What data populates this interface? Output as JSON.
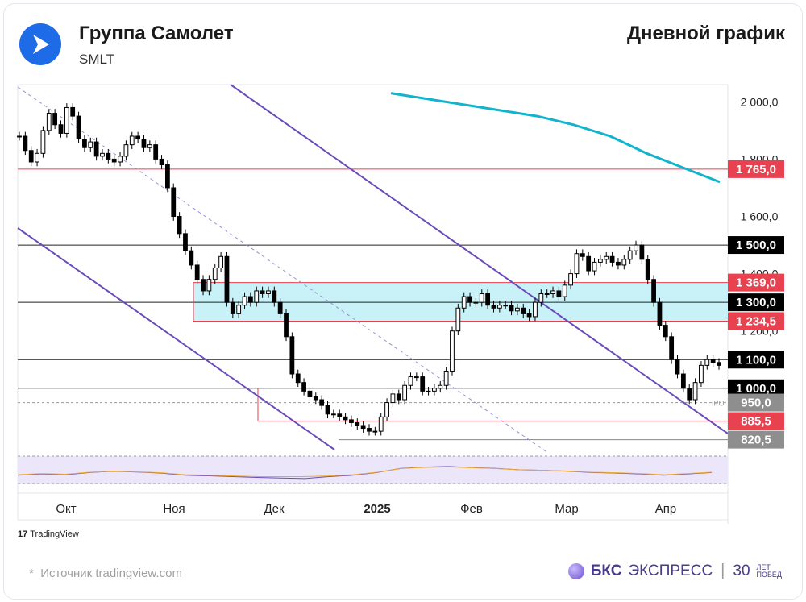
{
  "header": {
    "company": "Группа Самолет",
    "ticker": "SMLT",
    "chart_type_label": "Дневной график"
  },
  "footer": {
    "source": "Источник tradingview.com",
    "tradingview": "TradingView",
    "brand_bold": "БКС",
    "brand_rest": "ЭКСПРЕСС",
    "anniv_num": "30",
    "anniv_top": "ЛЕТ",
    "anniv_bottom": "ПОБЕД"
  },
  "colors": {
    "accent": "#1e6be8",
    "bull": "#ffffff",
    "bear": "#000000",
    "channel": "#6a4cb8",
    "ma": "#12b4cc",
    "zone": "#c9f1f8",
    "resistance_red": "#e8414f",
    "grey_label": "#8e8e8e"
  },
  "chart_data": {
    "type": "candlestick",
    "x_labels": [
      "Окт",
      "Ноя",
      "Дек",
      "2025",
      "Фев",
      "Мар",
      "Апр"
    ],
    "y_ticks": [
      "2 000,0",
      "1 800,0",
      "1 600,0",
      "1 400,0",
      "1 200,0"
    ],
    "ylim": [
      780,
      2060
    ],
    "levels": [
      {
        "value": 1765.0,
        "label": "1 765,0",
        "style": "red"
      },
      {
        "value": 1500.0,
        "label": "1 500,0",
        "style": "black"
      },
      {
        "value": 1369.0,
        "label": "1 369,0",
        "style": "red"
      },
      {
        "value": 1300.0,
        "label": "1 300,0",
        "style": "black"
      },
      {
        "value": 1234.5,
        "label": "1 234,5",
        "style": "red"
      },
      {
        "value": 1100.0,
        "label": "1 100,0",
        "style": "black"
      },
      {
        "value": 1000.0,
        "label": "1 000,0",
        "style": "black"
      },
      {
        "value": 950.0,
        "label": "950,0",
        "style": "grey"
      },
      {
        "value": 885.5,
        "label": "885,5",
        "style": "red"
      },
      {
        "value": 820.5,
        "label": "820,5",
        "style": "grey"
      }
    ],
    "ipo_label": "IPO",
    "candles_close": [
      1880,
      1830,
      1790,
      1820,
      1900,
      1960,
      1920,
      1890,
      1980,
      1950,
      1870,
      1840,
      1860,
      1810,
      1820,
      1800,
      1790,
      1810,
      1850,
      1880,
      1870,
      1840,
      1850,
      1800,
      1780,
      1700,
      1600,
      1540,
      1480,
      1430,
      1380,
      1340,
      1380,
      1420,
      1460,
      1300,
      1260,
      1290,
      1320,
      1300,
      1340,
      1330,
      1340,
      1300,
      1260,
      1180,
      1050,
      1020,
      990,
      970,
      960,
      940,
      910,
      910,
      900,
      890,
      880,
      870,
      860,
      850,
      850,
      900,
      950,
      980,
      960,
      1010,
      1040,
      1040,
      990,
      990,
      1000,
      1010,
      1060,
      1200,
      1280,
      1320,
      1300,
      1300,
      1330,
      1290,
      1280,
      1290,
      1290,
      1270,
      1280,
      1260,
      1250,
      1300,
      1330,
      1330,
      1340,
      1320,
      1360,
      1400,
      1470,
      1460,
      1410,
      1440,
      1450,
      1460,
      1440,
      1430,
      1450,
      1480,
      1500,
      1450,
      1380,
      1300,
      1220,
      1180,
      1100,
      1050,
      1000,
      960,
      1020,
      1080,
      1100,
      1090,
      1080
    ],
    "ma_200": [
      2030,
      2010,
      1990,
      1970,
      1950,
      1920,
      1880,
      1820,
      1770,
      1720
    ],
    "oscillator": [
      30,
      35,
      32,
      40,
      45,
      42,
      38,
      30,
      28,
      25,
      22,
      20,
      18,
      25,
      30,
      40,
      55,
      60,
      62,
      58,
      55,
      50,
      48,
      45,
      40,
      38,
      35,
      30,
      35,
      40
    ],
    "oscillator_bounds": [
      30,
      70
    ]
  }
}
